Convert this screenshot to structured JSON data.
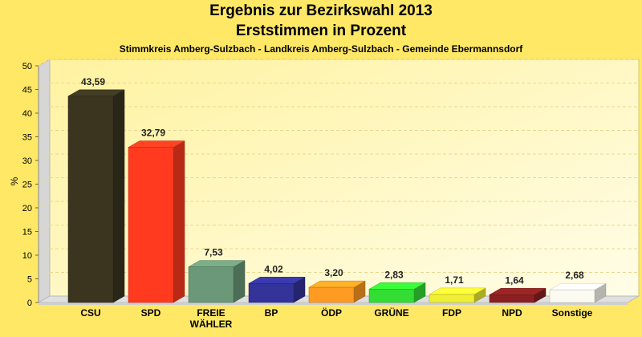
{
  "chart_data": {
    "type": "bar",
    "title": "Ergebnis zur Bezirkswahl 2013",
    "subtitle_line": "Erststimmen in Prozent",
    "caption": "Stimmkreis Amberg-Sulzbach - Landkreis Amberg-Sulzbach - Gemeinde Ebermannsdorf",
    "ylabel": "%",
    "ylim": [
      0,
      50
    ],
    "yticks": [
      0,
      5,
      10,
      15,
      20,
      25,
      30,
      35,
      40,
      45,
      50
    ],
    "grid": true,
    "categories": [
      "CSU",
      "SPD",
      "FREIE\nWÄHLER",
      "BP",
      "ÖDP",
      "GRÜNE",
      "FDP",
      "NPD",
      "Sonstige"
    ],
    "values": [
      43.59,
      32.79,
      7.53,
      4.02,
      3.2,
      2.83,
      1.71,
      1.64,
      2.68
    ],
    "value_labels": [
      "43,59",
      "32,79",
      "7,53",
      "4,02",
      "3,20",
      "2,83",
      "1,71",
      "1,64",
      "2,68"
    ],
    "colors": [
      "#3b3520",
      "#ff3a1e",
      "#6a9878",
      "#33339a",
      "#ff9a22",
      "#33dd33",
      "#eeee33",
      "#8a2020",
      "#fbfbf2"
    ]
  }
}
